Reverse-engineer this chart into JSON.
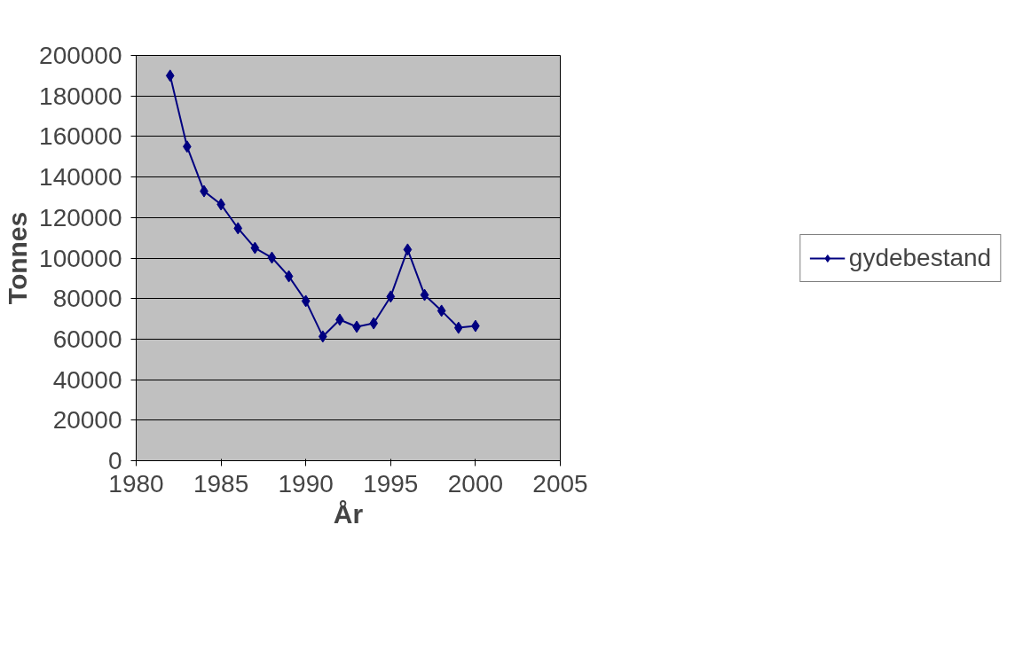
{
  "chart_data": {
    "type": "line",
    "xlabel": "År",
    "ylabel": "Tonnes",
    "x": [
      1982,
      1983,
      1984,
      1985,
      1986,
      1987,
      1988,
      1989,
      1990,
      1991,
      1992,
      1993,
      1994,
      1995,
      1996,
      1997,
      1998,
      1999,
      2000
    ],
    "series": [
      {
        "name": "gydebestand",
        "color": "#000080",
        "values": [
          190000,
          155000,
          133000,
          126500,
          114700,
          105000,
          100200,
          91000,
          78800,
          61300,
          69600,
          66100,
          67800,
          81000,
          104200,
          81800,
          74000,
          65600,
          66500
        ]
      }
    ],
    "xlim": [
      1980,
      2005
    ],
    "xticks": [
      1980,
      1985,
      1990,
      1995,
      2000,
      2005
    ],
    "ylim": [
      0,
      200000
    ],
    "yticks": [
      0,
      20000,
      40000,
      60000,
      80000,
      100000,
      120000,
      140000,
      160000,
      180000,
      200000
    ],
    "grid": "y",
    "legend": "right",
    "marker": "diamond",
    "line_style": "solid"
  }
}
